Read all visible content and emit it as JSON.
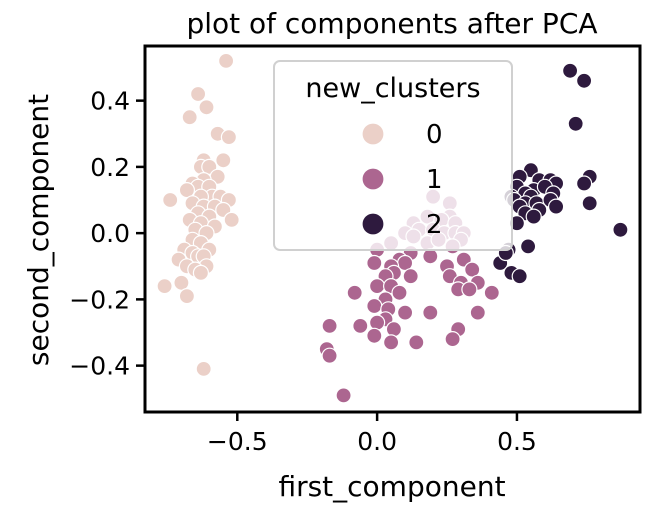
{
  "chart_data": {
    "type": "scatter",
    "title": "plot of components after PCA",
    "xlabel": "first_component",
    "ylabel": "second_component",
    "xlim": [
      -0.83,
      0.94
    ],
    "ylim": [
      -0.54,
      0.565
    ],
    "xticks": [
      -0.5,
      0.0,
      0.5
    ],
    "xtick_labels": [
      "−0.5",
      "0.0",
      "0.5"
    ],
    "yticks": [
      -0.4,
      -0.2,
      0.0,
      0.2,
      0.4
    ],
    "ytick_labels": [
      "−0.4",
      "−0.2",
      "0.0",
      "0.2",
      "0.4"
    ],
    "grid": false,
    "legend": {
      "title": "new_clusters",
      "placement": "top-center",
      "entries": [
        {
          "label": "0",
          "color": "#ebd0c8"
        },
        {
          "label": "1",
          "color": "#ac6690"
        },
        {
          "label": "2",
          "color": "#2e1a3e"
        }
      ]
    },
    "series": [
      {
        "cluster": "0",
        "color": "#ebd0c8",
        "points": [
          [
            -0.54,
            0.52
          ],
          [
            -0.64,
            0.42
          ],
          [
            -0.61,
            0.38
          ],
          [
            -0.67,
            0.35
          ],
          [
            -0.57,
            0.3
          ],
          [
            -0.53,
            0.29
          ],
          [
            -0.62,
            0.22
          ],
          [
            -0.55,
            0.22
          ],
          [
            -0.63,
            0.2
          ],
          [
            -0.6,
            0.2
          ],
          [
            -0.57,
            0.17
          ],
          [
            -0.62,
            0.16
          ],
          [
            -0.66,
            0.15
          ],
          [
            -0.64,
            0.14
          ],
          [
            -0.6,
            0.14
          ],
          [
            -0.68,
            0.13
          ],
          [
            -0.59,
            0.11
          ],
          [
            -0.56,
            0.11
          ],
          [
            -0.53,
            0.1
          ],
          [
            -0.63,
            0.11
          ],
          [
            -0.74,
            0.1
          ],
          [
            -0.66,
            0.09
          ],
          [
            -0.62,
            0.08
          ],
          [
            -0.58,
            0.08
          ],
          [
            -0.64,
            0.06
          ],
          [
            -0.55,
            0.07
          ],
          [
            -0.6,
            0.05
          ],
          [
            -0.67,
            0.04
          ],
          [
            -0.52,
            0.04
          ],
          [
            -0.63,
            0.03
          ],
          [
            -0.58,
            0.02
          ],
          [
            -0.65,
            0.01
          ],
          [
            -0.61,
            0.0
          ],
          [
            -0.66,
            -0.02
          ],
          [
            -0.63,
            -0.03
          ],
          [
            -0.69,
            -0.05
          ],
          [
            -0.6,
            -0.05
          ],
          [
            -0.66,
            -0.06
          ],
          [
            -0.64,
            -0.07
          ],
          [
            -0.62,
            -0.07
          ],
          [
            -0.71,
            -0.08
          ],
          [
            -0.68,
            -0.1
          ],
          [
            -0.61,
            -0.1
          ],
          [
            -0.65,
            -0.11
          ],
          [
            -0.63,
            -0.12
          ],
          [
            -0.7,
            -0.15
          ],
          [
            -0.76,
            -0.16
          ],
          [
            -0.68,
            -0.19
          ],
          [
            -0.62,
            -0.41
          ]
        ]
      },
      {
        "cluster": "1",
        "color": "#ac6690",
        "points": [
          [
            0.2,
            0.11
          ],
          [
            0.26,
            0.09
          ],
          [
            0.18,
            0.05
          ],
          [
            0.26,
            0.05
          ],
          [
            0.23,
            0.04
          ],
          [
            0.13,
            0.03
          ],
          [
            0.28,
            0.03
          ],
          [
            0.15,
            0.01
          ],
          [
            0.2,
            0.01
          ],
          [
            0.24,
            0.0
          ],
          [
            0.1,
            0.0
          ],
          [
            0.28,
            0.0
          ],
          [
            0.31,
            0.0
          ],
          [
            0.13,
            -0.01
          ],
          [
            0.18,
            -0.03
          ],
          [
            0.22,
            -0.02
          ],
          [
            0.3,
            -0.02
          ],
          [
            0.05,
            -0.03
          ],
          [
            0.27,
            -0.04
          ],
          [
            0.0,
            -0.05
          ],
          [
            0.12,
            -0.06
          ],
          [
            0.19,
            -0.07
          ],
          [
            0.08,
            -0.08
          ],
          [
            0.31,
            -0.08
          ],
          [
            -0.01,
            -0.09
          ],
          [
            0.1,
            -0.09
          ],
          [
            0.05,
            -0.1
          ],
          [
            0.25,
            -0.1
          ],
          [
            0.34,
            -0.11
          ],
          [
            0.06,
            -0.12
          ],
          [
            0.03,
            -0.13
          ],
          [
            0.12,
            -0.13
          ],
          [
            0.26,
            -0.13
          ],
          [
            0.3,
            -0.15
          ],
          [
            0.36,
            -0.15
          ],
          [
            0.0,
            -0.16
          ],
          [
            0.05,
            -0.16
          ],
          [
            0.29,
            -0.17
          ],
          [
            0.33,
            -0.17
          ],
          [
            0.41,
            -0.18
          ],
          [
            0.08,
            -0.18
          ],
          [
            -0.08,
            -0.18
          ],
          [
            0.03,
            -0.2
          ],
          [
            -0.01,
            -0.22
          ],
          [
            0.04,
            -0.23
          ],
          [
            0.1,
            -0.24
          ],
          [
            0.19,
            -0.24
          ],
          [
            0.36,
            -0.24
          ],
          [
            0.03,
            -0.26
          ],
          [
            0.0,
            -0.27
          ],
          [
            -0.17,
            -0.28
          ],
          [
            -0.06,
            -0.28
          ],
          [
            0.06,
            -0.29
          ],
          [
            0.29,
            -0.29
          ],
          [
            -0.01,
            -0.31
          ],
          [
            0.27,
            -0.32
          ],
          [
            0.05,
            -0.33
          ],
          [
            0.14,
            -0.33
          ],
          [
            -0.18,
            -0.35
          ],
          [
            -0.17,
            -0.37
          ],
          [
            -0.12,
            -0.49
          ]
        ]
      },
      {
        "cluster": "2",
        "color": "#2e1a3e",
        "points": [
          [
            0.69,
            0.49
          ],
          [
            0.74,
            0.46
          ],
          [
            0.71,
            0.33
          ],
          [
            0.55,
            0.19
          ],
          [
            0.51,
            0.17
          ],
          [
            0.58,
            0.16
          ],
          [
            0.62,
            0.16
          ],
          [
            0.76,
            0.17
          ],
          [
            0.64,
            0.15
          ],
          [
            0.74,
            0.15
          ],
          [
            0.5,
            0.14
          ],
          [
            0.56,
            0.13
          ],
          [
            0.6,
            0.14
          ],
          [
            0.53,
            0.12
          ],
          [
            0.48,
            0.11
          ],
          [
            0.55,
            0.11
          ],
          [
            0.63,
            0.12
          ],
          [
            0.49,
            0.1
          ],
          [
            0.53,
            0.09
          ],
          [
            0.57,
            0.09
          ],
          [
            0.62,
            0.1
          ],
          [
            0.76,
            0.09
          ],
          [
            0.51,
            0.08
          ],
          [
            0.58,
            0.07
          ],
          [
            0.64,
            0.08
          ],
          [
            0.53,
            0.06
          ],
          [
            0.56,
            0.05
          ],
          [
            0.5,
            0.03
          ],
          [
            0.87,
            0.01
          ],
          [
            0.47,
            -0.05
          ],
          [
            0.54,
            -0.04
          ],
          [
            0.44,
            -0.09
          ],
          [
            0.48,
            -0.12
          ],
          [
            0.51,
            -0.13
          ],
          [
            0.46,
            -0.06
          ]
        ]
      }
    ]
  }
}
